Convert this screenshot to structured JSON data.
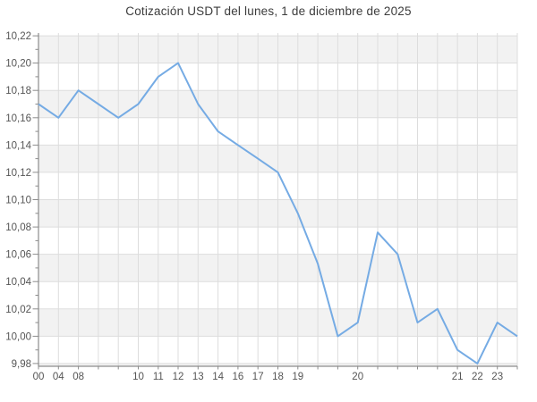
{
  "title": "Cotización USDT del lunes, 1 de diciembre de 2025",
  "chart_data": {
    "type": "line",
    "title": "Cotización USDT del lunes, 1 de diciembre de 2025",
    "x_labels": [
      "00",
      "04",
      "08",
      "",
      "",
      "10",
      "11",
      "12",
      "13",
      "14",
      "16",
      "17",
      "18",
      "19",
      "",
      "",
      "20",
      "",
      "",
      "",
      "",
      "21",
      "22",
      "23",
      ""
    ],
    "values": [
      10.17,
      10.16,
      10.18,
      10.17,
      10.16,
      10.17,
      10.19,
      10.2,
      10.17,
      10.15,
      10.14,
      10.13,
      10.12,
      10.09,
      10.053,
      10.0,
      10.01,
      10.076,
      10.06,
      10.01,
      10.02,
      9.99,
      9.98,
      10.01,
      10.0
    ],
    "xlabel": "",
    "ylabel": "",
    "ylim": [
      9.978,
      10.222
    ],
    "y_major_step": 0.02,
    "y_minor_step": 0.01,
    "y_tick_labels": [
      "10,22",
      "10,20",
      "10,18",
      "10,16",
      "10,14",
      "10,12",
      "10,10",
      "10,08",
      "10,06",
      "10,04",
      "10,02",
      "10,00",
      "9,98"
    ],
    "band_tops": [
      10.22,
      10.18,
      10.14,
      10.1,
      10.06,
      10.02,
      9.98
    ],
    "grid": true,
    "legend": false,
    "colors": {
      "line": "#75abe4",
      "band": "#f2f2f2",
      "gridline": "#dddddd",
      "axis": "#8c8c8c",
      "tick_text": "#555555",
      "title_text": "#3c3c3c",
      "background": "#ffffff"
    }
  }
}
